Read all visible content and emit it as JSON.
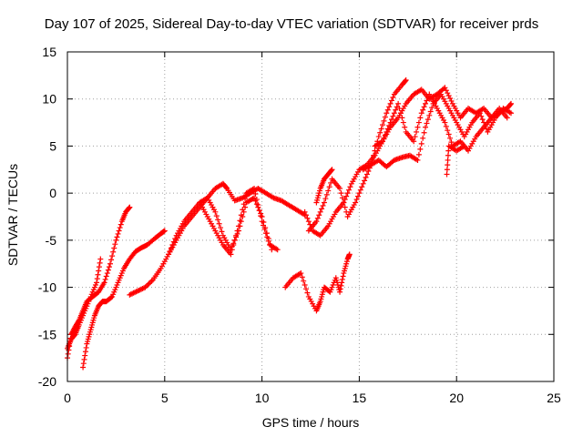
{
  "chart_data": {
    "type": "scatter",
    "title": "Day 107 of 2025, Sidereal Day-to-day VTEC variation (SDTVAR) for receiver prds",
    "xlabel": "GPS time / hours",
    "ylabel": "SDTVAR / TECUs",
    "xlim": [
      0,
      25
    ],
    "ylim": [
      -20,
      15
    ],
    "xticks": [
      "0",
      "5",
      "10",
      "15",
      "20",
      "25"
    ],
    "yticks": [
      "-20",
      "-15",
      "-10",
      "-5",
      "0",
      "5",
      "10",
      "15"
    ],
    "grid": true,
    "marker": "+",
    "color": "#ff0000",
    "series": [
      {
        "x": [
          0.0,
          0.2,
          0.4,
          0.6,
          0.8,
          1.0,
          1.3,
          1.6,
          1.9,
          2.2,
          2.5,
          2.8,
          3.0,
          3.2
        ],
        "y": [
          -17.5,
          -15.0,
          -14.2,
          -13.5,
          -12.5,
          -11.5,
          -11.0,
          -10.5,
          -9.5,
          -7.5,
          -5.0,
          -3.0,
          -2.0,
          -1.5
        ]
      },
      {
        "x": [
          0.8,
          1.0,
          1.2,
          1.4,
          1.6,
          1.8,
          2.0,
          2.3,
          2.6,
          2.9,
          3.2,
          3.5,
          3.8,
          4.1,
          4.5,
          4.8,
          5.0
        ],
        "y": [
          -18.5,
          -16.0,
          -14.5,
          -13.0,
          -12.0,
          -11.5,
          -11.5,
          -11.0,
          -9.5,
          -8.0,
          -7.0,
          -6.2,
          -5.8,
          -5.5,
          -4.8,
          -4.3,
          -4.0
        ]
      },
      {
        "x": [
          0.0,
          0.2,
          0.4,
          0.6,
          0.9,
          1.2,
          1.5,
          1.7
        ],
        "y": [
          -16.5,
          -15.5,
          -15.0,
          -14.0,
          -12.5,
          -11.0,
          -9.5,
          -7.0
        ]
      },
      {
        "x": [
          3.2,
          3.6,
          4.0,
          4.4,
          4.8,
          5.2,
          5.6,
          6.0,
          6.4,
          6.8,
          7.2,
          7.6,
          8.0,
          8.2,
          8.6,
          9.0,
          9.4,
          9.8,
          10.2,
          10.6,
          11.0,
          11.4,
          11.8,
          12.2
        ],
        "y": [
          -10.8,
          -10.4,
          -10.0,
          -9.2,
          -8.0,
          -6.5,
          -5.0,
          -3.5,
          -2.5,
          -1.5,
          -0.5,
          0.5,
          1.0,
          0.5,
          -0.8,
          -0.5,
          0.0,
          0.5,
          0.0,
          -0.5,
          -0.8,
          -1.3,
          -1.8,
          -2.3
        ]
      },
      {
        "x": [
          5.2,
          5.6,
          6.0,
          6.4,
          6.8,
          7.2,
          7.6,
          8.0,
          8.4,
          8.8,
          9.2,
          9.6,
          10.0,
          10.5
        ],
        "y": [
          -6.5,
          -4.5,
          -3.0,
          -2.0,
          -1.0,
          -0.5,
          -2.0,
          -4.5,
          -6.0,
          -4.0,
          -1.0,
          -0.5,
          -2.5,
          -6.0
        ]
      },
      {
        "x": [
          6.8,
          7.2,
          7.6,
          8.0,
          8.4,
          8.8,
          9.2,
          9.6,
          10.0,
          10.4,
          10.8
        ],
        "y": [
          -1.0,
          -2.5,
          -4.0,
          -5.5,
          -6.5,
          -3.5,
          0.0,
          0.5,
          -3.0,
          -5.5,
          -6.0
        ]
      },
      {
        "x": [
          11.2,
          11.6,
          12.0,
          12.4,
          12.8,
          13.0,
          13.2,
          13.5,
          13.8,
          14.0,
          14.2,
          14.4,
          14.5
        ],
        "y": [
          -10.0,
          -9.0,
          -8.5,
          -11.0,
          -12.5,
          -11.5,
          -10.0,
          -10.5,
          -9.0,
          -10.5,
          -8.5,
          -7.0,
          -6.5
        ]
      },
      {
        "x": [
          12.2,
          12.6,
          13.0,
          13.4,
          13.8,
          14.2,
          14.6,
          15.0,
          15.4,
          15.8,
          16.2,
          16.6,
          17.0,
          17.4,
          17.8,
          18.2,
          18.6,
          19.0,
          19.4,
          19.8,
          20.2,
          20.6,
          21.0,
          21.4,
          21.8,
          22.2,
          22.6,
          22.8
        ],
        "y": [
          -2.0,
          -4.0,
          -4.5,
          -3.5,
          -2.0,
          -1.0,
          1.0,
          2.5,
          3.0,
          4.0,
          5.5,
          7.0,
          8.0,
          9.5,
          10.5,
          11.0,
          10.0,
          10.5,
          11.2,
          9.5,
          8.0,
          9.0,
          8.5,
          9.0,
          8.0,
          8.5,
          9.0,
          9.5
        ]
      },
      {
        "x": [
          12.4,
          12.8,
          13.2,
          13.6,
          14.0,
          14.4,
          14.8,
          15.2,
          15.6,
          16.0,
          16.4,
          16.8,
          17.2,
          17.4
        ],
        "y": [
          -4.0,
          -3.0,
          -1.0,
          1.5,
          0.5,
          -2.5,
          -1.0,
          1.0,
          3.0,
          6.0,
          8.5,
          10.5,
          11.5,
          12.0
        ]
      },
      {
        "x": [
          15.2,
          15.6,
          16.0,
          16.4,
          16.8,
          17.2,
          17.6,
          18.0,
          18.4,
          18.8,
          19.2,
          19.6,
          20.0,
          20.4,
          20.8,
          21.2,
          21.6,
          22.0,
          22.4,
          22.8
        ],
        "y": [
          2.5,
          3.0,
          3.5,
          2.8,
          3.5,
          3.8,
          4.0,
          3.5,
          7.0,
          9.5,
          10.5,
          9.0,
          7.5,
          6.0,
          7.5,
          8.5,
          6.5,
          8.0,
          9.0,
          8.5
        ]
      },
      {
        "x": [
          15.8,
          16.2,
          16.6,
          17.0,
          17.4,
          17.8,
          18.2,
          18.6,
          19.0,
          19.4,
          19.8,
          20.2,
          20.6,
          21.0,
          21.4,
          21.8,
          22.2,
          22.6
        ],
        "y": [
          5.0,
          5.5,
          7.5,
          9.5,
          6.5,
          5.5,
          8.5,
          10.5,
          9.0,
          7.5,
          5.0,
          5.5,
          4.5,
          6.0,
          7.0,
          8.0,
          9.0,
          8.0
        ]
      },
      {
        "x": [
          12.8,
          13.0,
          13.2,
          13.4,
          13.6
        ],
        "y": [
          -1.0,
          0.5,
          1.5,
          2.0,
          2.5
        ]
      },
      {
        "x": [
          19.5,
          19.6,
          20.0,
          20.4
        ],
        "y": [
          2.0,
          5.0,
          4.5,
          5.0
        ]
      }
    ]
  }
}
